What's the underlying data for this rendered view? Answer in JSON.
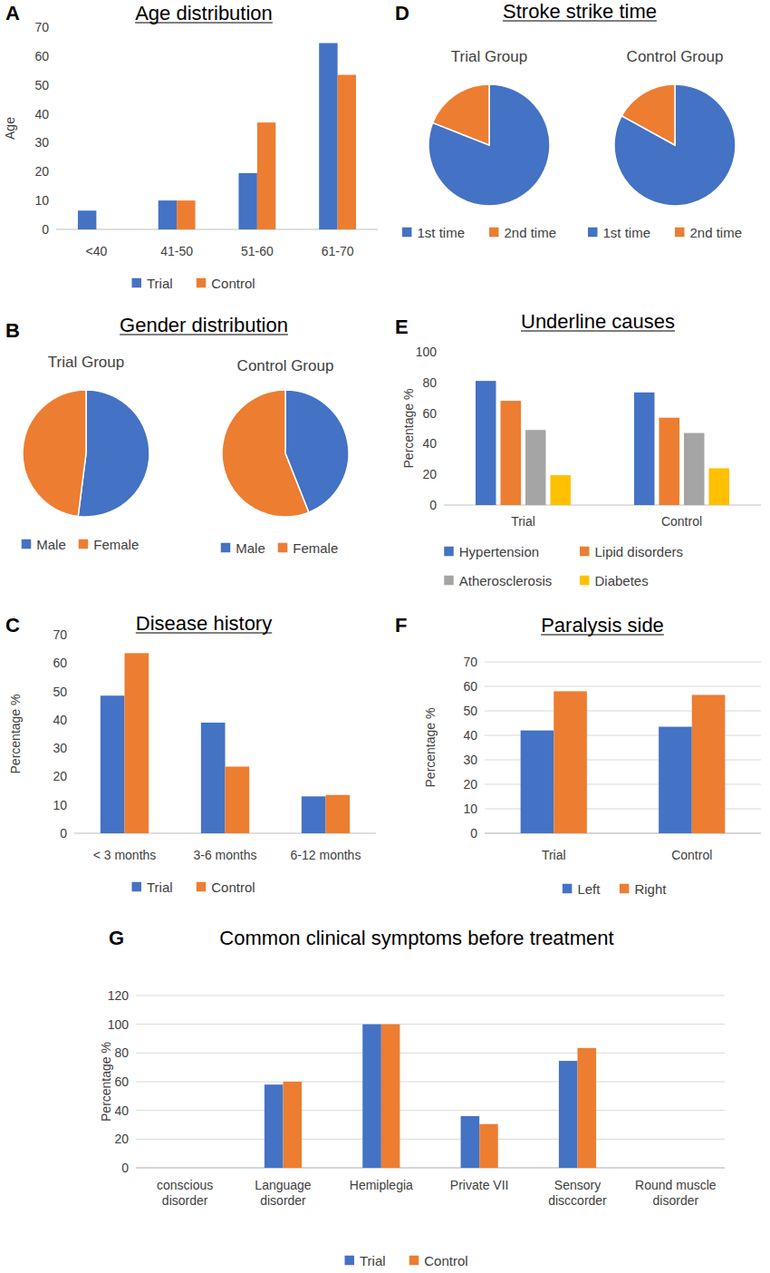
{
  "chart_data": [
    {
      "type": "bar",
      "panel_label": "A",
      "title": "Age distribution",
      "ylabel": "Age",
      "categories": [
        "<40",
        "41-50",
        "51-60",
        "61-70"
      ],
      "series": [
        {
          "name": "Trial",
          "color": "#4472c4",
          "values": [
            6.5,
            10,
            19.5,
            64.5
          ]
        },
        {
          "name": "Control",
          "color": "#ed7d31",
          "values": [
            0,
            10,
            37,
            53.5
          ]
        }
      ],
      "ylim": [
        0,
        70
      ],
      "yticks": [
        0,
        10,
        20,
        30,
        40,
        50,
        60,
        70
      ],
      "grid": false,
      "legend": "bottom"
    },
    {
      "type": "pie",
      "panel_label": "B",
      "title": "Gender distribution",
      "categories": [
        "Male",
        "Female"
      ],
      "colors": [
        "#4472c4",
        "#ed7d31"
      ],
      "series": [
        {
          "name": "Trial Group",
          "values": [
            52,
            48
          ]
        },
        {
          "name": "Control Group",
          "values": [
            44,
            56
          ]
        }
      ],
      "legend": "bottom"
    },
    {
      "type": "bar",
      "panel_label": "C",
      "title": "Disease history",
      "ylabel": "Percentage %",
      "categories": [
        "< 3 months",
        "3-6 months",
        "6-12 months"
      ],
      "series": [
        {
          "name": "Trial",
          "color": "#4472c4",
          "values": [
            48.5,
            39,
            13
          ]
        },
        {
          "name": "Control",
          "color": "#ed7d31",
          "values": [
            63.5,
            23.5,
            13.5
          ]
        }
      ],
      "ylim": [
        0,
        70
      ],
      "yticks": [
        0,
        10,
        20,
        30,
        40,
        50,
        60,
        70
      ],
      "grid": false,
      "legend": "bottom"
    },
    {
      "type": "pie",
      "panel_label": "D",
      "title": "Stroke strike time",
      "categories": [
        "1st time",
        "2nd time"
      ],
      "colors": [
        "#4472c4",
        "#ed7d31"
      ],
      "series": [
        {
          "name": "Trial Group",
          "values": [
            81,
            19
          ]
        },
        {
          "name": "Control Group",
          "values": [
            83,
            17
          ]
        }
      ],
      "legend": "bottom"
    },
    {
      "type": "bar",
      "panel_label": "E",
      "title": "Underline causes",
      "ylabel": "Percentage %",
      "categories": [
        "Trial",
        "Control"
      ],
      "series": [
        {
          "name": "Hypertension",
          "color": "#4472c4",
          "values": [
            81,
            73.5
          ]
        },
        {
          "name": "Lipid disorders",
          "color": "#ed7d31",
          "values": [
            68,
            57
          ]
        },
        {
          "name": "Atherosclerosis",
          "color": "#a5a5a5",
          "values": [
            49,
            47
          ]
        },
        {
          "name": "Diabetes",
          "color": "#ffc000",
          "values": [
            19.5,
            24
          ]
        }
      ],
      "ylim": [
        0,
        100
      ],
      "yticks": [
        0,
        20,
        40,
        60,
        80,
        100
      ],
      "grid": false,
      "legend": "bottom"
    },
    {
      "type": "bar",
      "panel_label": "F",
      "title": "Paralysis side",
      "ylabel": "Percentage %",
      "categories": [
        "Trial",
        "Control"
      ],
      "series": [
        {
          "name": "Left",
          "color": "#4472c4",
          "values": [
            42,
            43.5
          ]
        },
        {
          "name": "Right",
          "color": "#ed7d31",
          "values": [
            58,
            56.5
          ]
        }
      ],
      "ylim": [
        0,
        70
      ],
      "yticks": [
        0,
        10,
        20,
        30,
        40,
        50,
        60,
        70
      ],
      "grid": true,
      "legend": "bottom"
    },
    {
      "type": "bar",
      "panel_label": "G",
      "title": "Common clinical symptoms before treatment",
      "ylabel": "Percentage %",
      "categories": [
        "conscious disorder",
        "Language disorder",
        "Hemiplegia",
        "Private VII",
        "Sensory disccorder",
        "Round muscle disorder"
      ],
      "series": [
        {
          "name": "Trial",
          "color": "#4472c4",
          "values": [
            0,
            58,
            100,
            36,
            74.5,
            0
          ]
        },
        {
          "name": "Control",
          "color": "#ed7d31",
          "values": [
            0,
            60,
            100,
            30.5,
            83.5,
            0
          ]
        }
      ],
      "ylim": [
        0,
        120
      ],
      "yticks": [
        0,
        20,
        40,
        60,
        80,
        100,
        120
      ],
      "grid": true,
      "legend": "bottom"
    }
  ]
}
